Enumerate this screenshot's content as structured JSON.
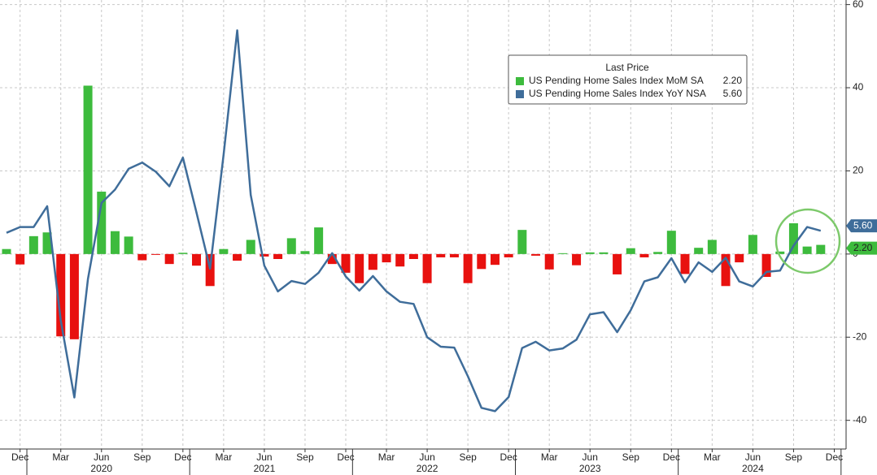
{
  "chart_data": {
    "type": "bar-line",
    "legend_title": "Last Price",
    "categories": [
      null,
      "Dec",
      null,
      null,
      "Mar",
      null,
      null,
      "Jun",
      null,
      null,
      "Sep",
      null,
      null,
      "Dec",
      null,
      null,
      "Mar",
      null,
      null,
      "Jun",
      null,
      null,
      "Sep",
      null,
      null,
      "Dec",
      null,
      null,
      "Mar",
      null,
      null,
      "Jun",
      null,
      null,
      "Sep",
      null,
      null,
      "Dec",
      null,
      null,
      "Mar",
      null,
      null,
      "Jun",
      null,
      null,
      "Sep",
      null,
      null,
      "Dec",
      null,
      null,
      "Mar",
      null,
      null,
      "Jun",
      null,
      null,
      "Sep",
      null,
      null,
      "Dec"
    ],
    "year_labels": [
      "2020",
      "2021",
      "2022",
      "2023",
      "2024"
    ],
    "series": [
      {
        "name": "US Pending Home Sales Index MoM SA",
        "type": "bar",
        "color": "#3dbb3d",
        "negative_color": "#e8110f",
        "values": [
          1.2,
          -2.5,
          4.3,
          5.2,
          -19.8,
          -20.5,
          40.5,
          15,
          5.5,
          4.2,
          -1.5,
          -0.2,
          -2.4,
          0.3,
          -2.8,
          -7.7,
          1.2,
          -1.6,
          3.4,
          -0.6,
          -1.2,
          3.8,
          0.7,
          6.4,
          -2.4,
          -4.5,
          -7.0,
          -3.8,
          -2.0,
          -3.0,
          -1.2,
          -7.0,
          -0.8,
          -0.8,
          -7.0,
          -3.6,
          -2.6,
          -0.8,
          5.8,
          -0.4,
          -3.7,
          0.2,
          -2.7,
          0.4,
          0.4,
          -4.9,
          1.4,
          -0.8,
          0.5,
          5.6,
          -4.8,
          1.5,
          3.4,
          -7.7,
          -2.0,
          4.6,
          -5.5,
          0.6,
          7.4,
          1.8,
          2.2,
          null
        ],
        "value_labels": [
          null,
          null,
          null,
          null,
          null,
          null,
          null,
          null,
          null,
          null,
          null,
          null,
          null,
          null,
          null,
          null,
          null,
          null,
          null,
          null,
          null,
          null,
          null,
          null,
          null,
          null,
          null,
          null,
          null,
          null,
          null,
          null,
          null,
          null,
          null,
          null,
          null,
          null,
          null,
          null,
          null,
          null,
          null,
          null,
          null,
          null,
          null,
          null,
          null,
          null,
          null,
          null,
          null,
          null,
          null,
          null,
          null,
          null,
          null,
          null,
          "2.20",
          null
        ]
      },
      {
        "name": "US Pending Home Sales Index YoY NSA",
        "type": "line",
        "color": "#3f6d9a",
        "values": [
          5.1,
          6.5,
          6.5,
          11.5,
          -16,
          -34.5,
          -6,
          12.3,
          15.5,
          20.5,
          22,
          19.8,
          16.3,
          23.2,
          10,
          -3.5,
          24,
          53.8,
          14.2,
          -2.8,
          -9.0,
          -6.5,
          -7.2,
          -4.5,
          0.2,
          -5.4,
          -8.8,
          -5.3,
          -9.0,
          -11.5,
          -12.0,
          -20,
          -22.3,
          -22.5,
          -29.4,
          -37.0,
          -37.8,
          -34.4,
          -22.6,
          -21.1,
          -23.2,
          -22.7,
          -20.6,
          -14.5,
          -14.0,
          -18.8,
          -13.5,
          -6.6,
          -5.6,
          -1.0,
          -6.8,
          -2.0,
          -4.3,
          -0.9,
          -6.6,
          -7.8,
          -4.3,
          -4.0,
          2.0,
          6.5,
          5.6,
          null
        ],
        "value_labels": [
          null,
          null,
          null,
          null,
          null,
          null,
          null,
          null,
          null,
          null,
          null,
          null,
          null,
          null,
          null,
          null,
          null,
          null,
          null,
          null,
          null,
          null,
          null,
          null,
          null,
          null,
          null,
          null,
          null,
          null,
          null,
          null,
          null,
          null,
          null,
          null,
          null,
          null,
          null,
          null,
          null,
          null,
          null,
          null,
          null,
          null,
          null,
          null,
          null,
          null,
          null,
          null,
          null,
          null,
          null,
          null,
          null,
          null,
          null,
          null,
          "5.60",
          null
        ]
      }
    ],
    "ylim": [
      -46.9,
      61.1
    ],
    "yticks": [
      -40,
      -20,
      0,
      20,
      40,
      60
    ],
    "grid": true
  }
}
